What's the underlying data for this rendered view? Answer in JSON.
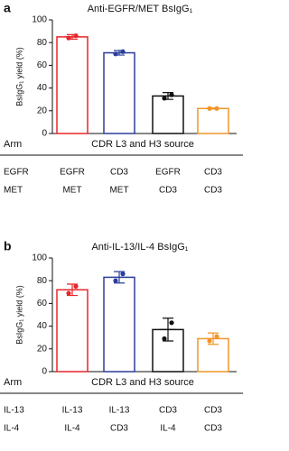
{
  "chart_data": [
    {
      "type": "bar",
      "panel": "a",
      "title": "Anti-EGFR/MET BsIgG₁",
      "y_label": "BsIgG₁ yield (%)",
      "ylim": [
        0,
        100
      ],
      "yticks": [
        0,
        20,
        40,
        60,
        80,
        100
      ],
      "colors": [
        "#e8262b",
        "#2b3e9b",
        "#111111",
        "#f0962a"
      ],
      "values": [
        85,
        71,
        33,
        22
      ],
      "errors": [
        2,
        2,
        3,
        0.5
      ],
      "points": [
        [
          84,
          86
        ],
        [
          70,
          72
        ],
        [
          31,
          34
        ],
        [
          22,
          22
        ]
      ],
      "table": {
        "header": [
          "Arm",
          "CDR L3 and H3 source"
        ],
        "rows": [
          [
            "EGFR",
            "EGFR",
            "CD3",
            "EGFR",
            "CD3"
          ],
          [
            "MET",
            "MET",
            "MET",
            "CD3",
            "CD3"
          ]
        ]
      }
    },
    {
      "type": "bar",
      "panel": "b",
      "title": "Anti-IL-13/IL-4 BsIgG₁",
      "y_label": "BsIgG₁ yield (%)",
      "ylim": [
        0,
        100
      ],
      "yticks": [
        0,
        20,
        40,
        60,
        80,
        100
      ],
      "colors": [
        "#e8262b",
        "#2b3e9b",
        "#111111",
        "#f0962a"
      ],
      "values": [
        72,
        83,
        37,
        29
      ],
      "errors": [
        5,
        5,
        10,
        5
      ],
      "points": [
        [
          69,
          75
        ],
        [
          80,
          86
        ],
        [
          29,
          43
        ],
        [
          27,
          31
        ]
      ],
      "table": {
        "header": [
          "Arm",
          "CDR L3 and H3 source"
        ],
        "rows": [
          [
            "IL-13",
            "IL-13",
            "IL-13",
            "CD3",
            "CD3"
          ],
          [
            "IL-4",
            "IL-4",
            "CD3",
            "IL-4",
            "CD3"
          ]
        ]
      }
    }
  ]
}
